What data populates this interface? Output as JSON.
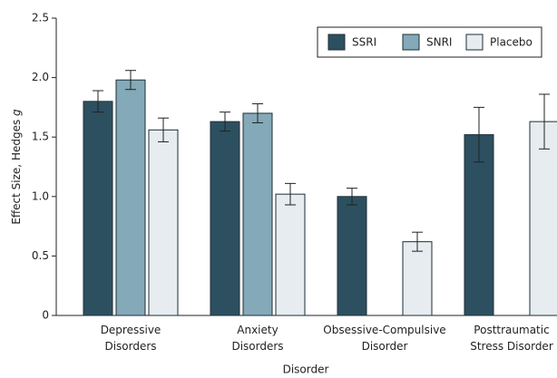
{
  "chart_data": {
    "type": "bar",
    "categories": [
      [
        "Depressive",
        "Disorders"
      ],
      [
        "Anxiety",
        "Disorders"
      ],
      [
        "Obsessive-Compulsive",
        "Disorder"
      ],
      [
        "Posttraumatic",
        "Stress Disorder"
      ]
    ],
    "series": [
      {
        "name": "SSRI",
        "color": "#2d5060",
        "values": [
          1.8,
          1.63,
          1.0,
          1.52
        ],
        "errors": [
          0.09,
          0.08,
          0.07,
          0.23
        ]
      },
      {
        "name": "SNRI",
        "color": "#84a9b8",
        "values": [
          1.98,
          1.7,
          null,
          null
        ],
        "errors": [
          0.08,
          0.08,
          null,
          null
        ]
      },
      {
        "name": "Placebo",
        "color": "#e6ecef",
        "values": [
          1.56,
          1.02,
          0.62,
          1.63
        ],
        "errors": [
          0.1,
          0.09,
          0.08,
          0.23
        ]
      }
    ],
    "xlabel": "Disorder",
    "ylabel": [
      "Effect Size, Hedges",
      "g"
    ],
    "ylim": [
      0,
      2.5
    ],
    "yticks": [
      0,
      0.5,
      {
        "value": 1.0,
        "label": "1.0"
      },
      1.5,
      {
        "value": 2.0,
        "label": "2.0"
      },
      2.5
    ],
    "legend": "top-right"
  }
}
